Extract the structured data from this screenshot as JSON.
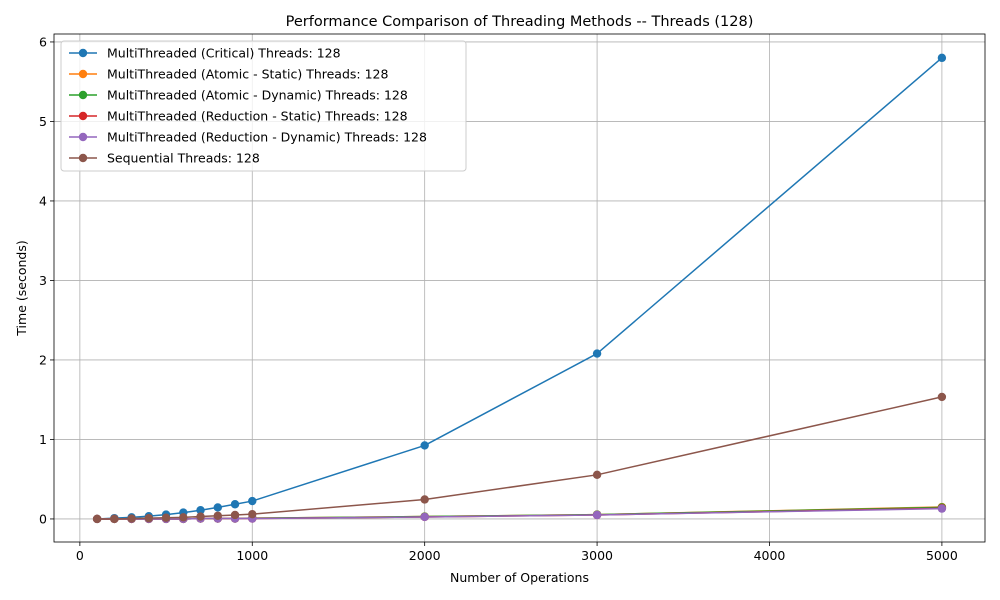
{
  "chart_data": {
    "type": "line",
    "title": "Performance Comparison of Threading Methods -- Threads (128)",
    "xlabel": "Number of Operations",
    "ylabel": "Time (seconds)",
    "xlim": [
      -150,
      5250
    ],
    "ylim": [
      -0.29,
      6.1
    ],
    "xticks": [
      0,
      1000,
      2000,
      3000,
      4000,
      5000
    ],
    "yticks": [
      0,
      1,
      2,
      3,
      4,
      5,
      6
    ],
    "grid": true,
    "legend_position": "top-left",
    "x": [
      100,
      200,
      300,
      400,
      500,
      600,
      700,
      800,
      900,
      1000,
      2000,
      3000,
      5000
    ],
    "series": [
      {
        "name": "MultiThreaded (Critical) Threads: 128",
        "color": "#1f77b4",
        "values": [
          0.0,
          0.01,
          0.02,
          0.035,
          0.055,
          0.08,
          0.11,
          0.145,
          0.185,
          0.225,
          0.925,
          2.08,
          5.8
        ]
      },
      {
        "name": "MultiThreaded (Atomic - Static) Threads: 128",
        "color": "#ff7f0e",
        "values": [
          0.0,
          0.0,
          0.0,
          0.0,
          0.0,
          0.0,
          0.005,
          0.005,
          0.005,
          0.01,
          0.03,
          0.055,
          0.15
        ]
      },
      {
        "name": "MultiThreaded (Atomic - Dynamic) Threads: 128",
        "color": "#2ca02c",
        "values": [
          0.0,
          0.0,
          0.0,
          0.0,
          0.0,
          0.0,
          0.005,
          0.005,
          0.005,
          0.01,
          0.03,
          0.055,
          0.145
        ]
      },
      {
        "name": "MultiThreaded (Reduction - Static) Threads: 128",
        "color": "#d62728",
        "values": [
          0.0,
          0.0,
          0.0,
          0.0,
          0.0,
          0.0,
          0.005,
          0.005,
          0.005,
          0.005,
          0.025,
          0.05,
          0.135
        ]
      },
      {
        "name": "MultiThreaded (Reduction - Dynamic) Threads: 128",
        "color": "#9467bd",
        "values": [
          0.0,
          0.0,
          0.0,
          0.0,
          0.0,
          0.0,
          0.005,
          0.005,
          0.005,
          0.005,
          0.025,
          0.05,
          0.13
        ]
      },
      {
        "name": "Sequential Threads: 128",
        "color": "#8c564b",
        "values": [
          0.0,
          0.0,
          0.005,
          0.01,
          0.015,
          0.02,
          0.03,
          0.04,
          0.05,
          0.06,
          0.245,
          0.555,
          1.535
        ]
      }
    ]
  }
}
